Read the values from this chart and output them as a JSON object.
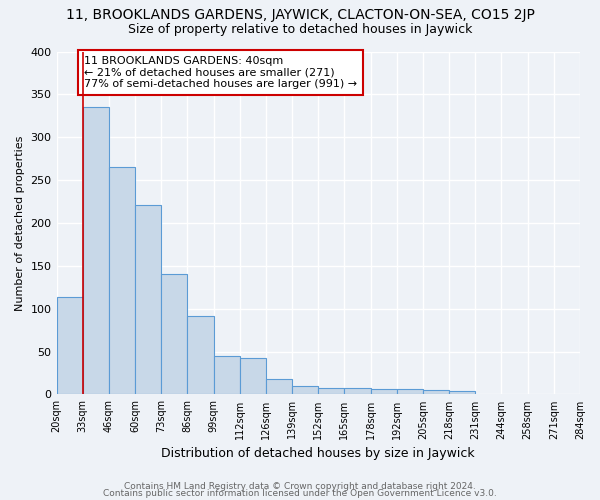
{
  "title1": "11, BROOKLANDS GARDENS, JAYWICK, CLACTON-ON-SEA, CO15 2JP",
  "title2": "Size of property relative to detached houses in Jaywick",
  "xlabel": "Distribution of detached houses by size in Jaywick",
  "ylabel": "Number of detached properties",
  "bar_values": [
    114,
    335,
    265,
    221,
    141,
    92,
    45,
    42,
    18,
    10,
    8,
    8,
    6,
    6,
    5,
    4
  ],
  "tick_labels": [
    "20sqm",
    "33sqm",
    "46sqm",
    "60sqm",
    "73sqm",
    "86sqm",
    "99sqm",
    "112sqm",
    "126sqm",
    "139sqm",
    "152sqm",
    "165sqm",
    "178sqm",
    "192sqm",
    "205sqm",
    "218sqm",
    "231sqm",
    "244sqm",
    "258sqm",
    "271sqm",
    "284sqm"
  ],
  "bar_color": "#c8d8e8",
  "bar_edge_color": "#5b9bd5",
  "bar_edge_width": 0.8,
  "red_line_bin": 1,
  "annotation_text": "11 BROOKLANDS GARDENS: 40sqm\n← 21% of detached houses are smaller (271)\n77% of semi-detached houses are larger (991) →",
  "annotation_box_color": "#ffffff",
  "annotation_box_edge": "#cc0000",
  "ylim": [
    0,
    400
  ],
  "yticks": [
    0,
    50,
    100,
    150,
    200,
    250,
    300,
    350,
    400
  ],
  "footer1": "Contains HM Land Registry data © Crown copyright and database right 2024.",
  "footer2": "Contains public sector information licensed under the Open Government Licence v3.0.",
  "background_color": "#eef2f7",
  "grid_color": "#ffffff",
  "title1_fontsize": 10,
  "title2_fontsize": 9,
  "xlabel_fontsize": 9,
  "ylabel_fontsize": 8,
  "tick_fontsize": 7,
  "footer_fontsize": 6.5
}
